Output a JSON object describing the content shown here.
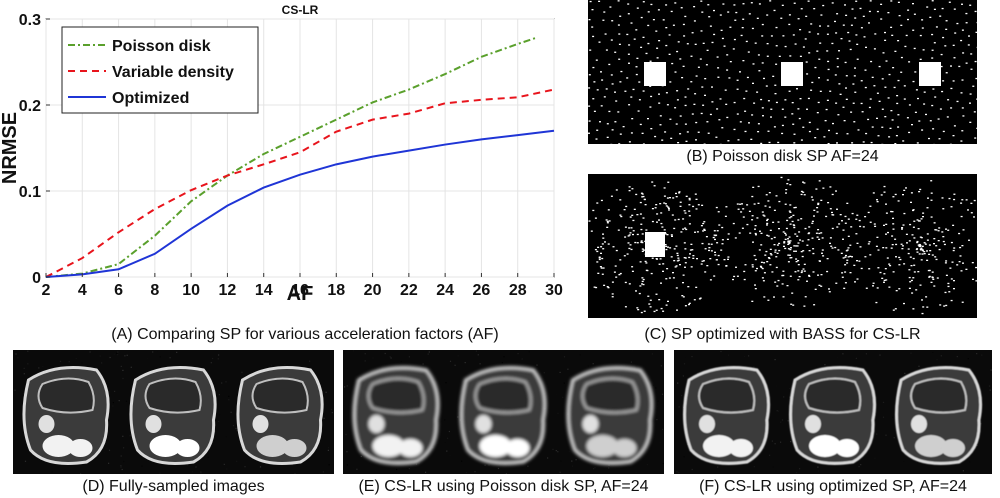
{
  "figure": {
    "captions": {
      "A": "(A) Comparing SP for various acceleration factors (AF)",
      "B": "(B) Poisson disk SP AF=24",
      "C": "(C) SP optimized with BASS for CS-LR",
      "D": "(D) Fully-sampled images",
      "E": "(E) CS-LR using Poisson disk SP, AF=24",
      "F": "(F) CS-LR using optimized SP, AF=24"
    }
  },
  "chart_data": {
    "type": "line",
    "title": "CS-LR",
    "xlabel": "AF",
    "ylabel": "NRMSE",
    "xlim": [
      2,
      30
    ],
    "ylim": [
      0,
      0.3
    ],
    "xticks": [
      "2",
      "4",
      "6",
      "8",
      "10",
      "12",
      "14",
      "16",
      "18",
      "20",
      "22",
      "24",
      "26",
      "28",
      "30"
    ],
    "yticks": [
      "0",
      "0.1",
      "0.2",
      "0.3"
    ],
    "grid": true,
    "legend_position": "top-left",
    "series": [
      {
        "name": "Poisson disk",
        "color": "#5aa02c",
        "style": "dashdot",
        "x": [
          2,
          4,
          6,
          8,
          10,
          12,
          14,
          16,
          18,
          20,
          22,
          24,
          26,
          28,
          29
        ],
        "y": [
          0.0,
          0.004,
          0.015,
          0.048,
          0.088,
          0.118,
          0.143,
          0.163,
          0.183,
          0.203,
          0.218,
          0.236,
          0.256,
          0.271,
          0.278
        ]
      },
      {
        "name": "Variable density",
        "color": "#e8141c",
        "style": "dashed",
        "x": [
          2,
          4,
          6,
          8,
          10,
          12,
          14,
          16,
          18,
          20,
          22,
          24,
          26,
          28,
          30
        ],
        "y": [
          0.0,
          0.022,
          0.052,
          0.079,
          0.101,
          0.118,
          0.131,
          0.145,
          0.169,
          0.183,
          0.19,
          0.202,
          0.206,
          0.209,
          0.218
        ]
      },
      {
        "name": "Optimized",
        "color": "#1f35d6",
        "style": "solid",
        "x": [
          2,
          4,
          6,
          8,
          10,
          12,
          14,
          16,
          18,
          20,
          22,
          24,
          26,
          28,
          30
        ],
        "y": [
          0.0,
          0.003,
          0.009,
          0.027,
          0.056,
          0.083,
          0.104,
          0.119,
          0.131,
          0.14,
          0.147,
          0.154,
          0.16,
          0.165,
          0.17
        ]
      }
    ]
  }
}
